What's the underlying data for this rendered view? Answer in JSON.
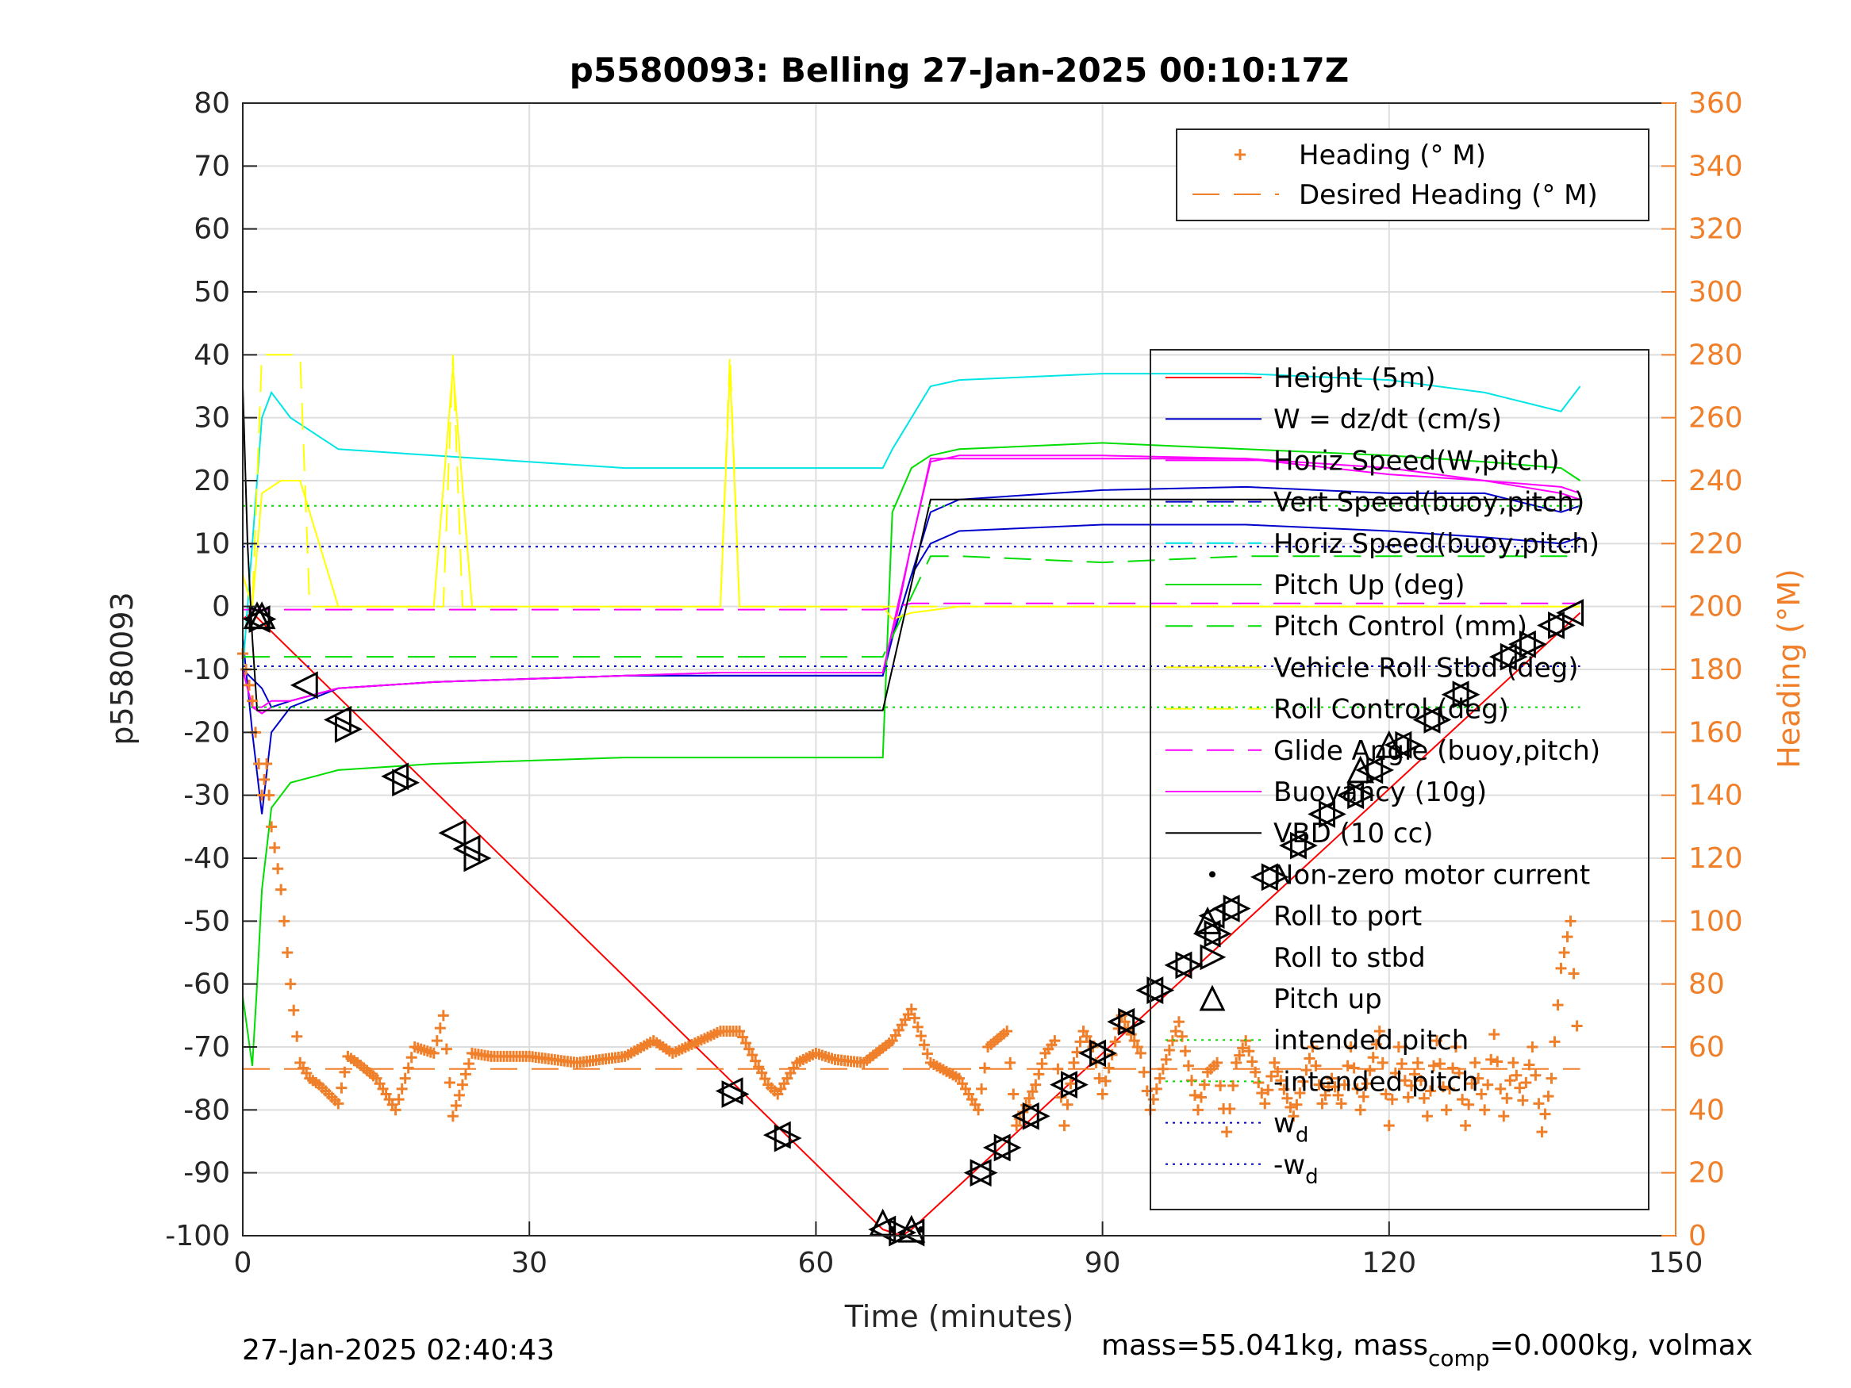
{
  "chart_data": {
    "type": "line",
    "title": "p5580093: Belling 27-Jan-2025 00:10:17Z",
    "xlabel": "Time (minutes)",
    "ylabel": "p5580093",
    "ylabel_right": "Heading (°M)",
    "xlim": [
      0,
      150
    ],
    "ylim": [
      -100,
      80
    ],
    "ylim_right": [
      0,
      360
    ],
    "xticks": [
      "0",
      "30",
      "60",
      "90",
      "120",
      "150"
    ],
    "yticks": [
      "80",
      "70",
      "60",
      "50",
      "40",
      "30",
      "20",
      "10",
      "0",
      "-10",
      "-20",
      "-30",
      "-40",
      "-50",
      "-60",
      "-70",
      "-80",
      "-90",
      "-100"
    ],
    "yticks_right": [
      "360",
      "340",
      "320",
      "300",
      "280",
      "260",
      "240",
      "220",
      "200",
      "180",
      "160",
      "140",
      "120",
      "100",
      "80",
      "60",
      "40",
      "20",
      "0"
    ],
    "grid": true,
    "footer_left": "27-Jan-2025 02:40:43",
    "footer_right_a": "mass=55.041kg, mass",
    "footer_right_sub": "comp",
    "footer_right_b": "=0.000kg, volmax",
    "legend_right": {
      "placement": "top-right",
      "entries": [
        "Heading (° M)",
        "Desired Heading (° M)"
      ]
    },
    "legend_main": {
      "placement": "right",
      "entries": [
        "Height (5m)",
        "W = dz/dt (cm/s)",
        "Horiz Speed(W,pitch)",
        "Vert Speed(buoy,pitch)",
        "Horiz Speed(buoy,pitch)",
        "Pitch Up (deg)",
        "Pitch Control (mm)",
        "Vehicle Roll Stbd (deg)",
        "Roll Control (deg)",
        "Glide Angle (buoy,pitch)",
        "Buoyancy (10g)",
        "VBD (10 cc)",
        "Non-zero motor current",
        "Roll to port",
        "Roll to stbd",
        "Pitch up",
        "intended pitch",
        "-intended pitch",
        "w",
        "-w"
      ],
      "sub_wd": "d"
    },
    "colors": {
      "height": "#ff0000",
      "w": "#0000cc",
      "horiz_w": "#ff00ff",
      "vert_buoy": "#0000cc",
      "horiz_buoy": "#00e5e5",
      "pitch": "#00dd00",
      "pitch_ctrl": "#00dd00",
      "roll": "#ffff00",
      "roll_ctrl": "#ffff00",
      "glide": "#ff00ff",
      "buoyancy": "#ff00ff",
      "vbd": "#000000",
      "heading": "#f07f2a",
      "intended": "#00dd00",
      "wd": "#0000cc"
    },
    "series": [
      {
        "name": "Height (5m)",
        "axis": "left",
        "x": [
          0,
          1,
          67,
          69,
          70,
          140
        ],
        "y": [
          -2,
          -1,
          -99,
          -100,
          -99,
          -1
        ]
      },
      {
        "name": "W = dz/dt (cm/s)",
        "axis": "left",
        "x": [
          0,
          1,
          2,
          3,
          5,
          10,
          20,
          30,
          40,
          50,
          60,
          67,
          68,
          70,
          72,
          75,
          90,
          105,
          120,
          130,
          138,
          140
        ],
        "y": [
          -5,
          -20,
          -33,
          -20,
          -16,
          -13,
          -12,
          -11.5,
          -11,
          -11,
          -11,
          -11,
          -5,
          5,
          10,
          12,
          13,
          13,
          12,
          11,
          10,
          11
        ]
      },
      {
        "name": "Horiz Speed(W,pitch)",
        "axis": "left",
        "x": [
          0,
          1,
          2,
          3,
          5,
          10,
          20,
          30,
          40,
          50,
          60,
          67,
          68,
          70,
          72,
          75,
          90,
          105,
          120,
          130,
          138,
          140
        ],
        "y": [
          -10,
          -16,
          -17,
          -16,
          -15,
          -13,
          -12,
          -11.5,
          -11,
          -10.5,
          -10.5,
          -10.5,
          -5,
          10,
          23,
          24,
          24,
          23.5,
          22,
          20,
          18,
          17
        ]
      },
      {
        "name": "Vert Speed(buoy,pitch)",
        "axis": "left",
        "x": [
          0,
          2,
          3,
          5,
          10,
          20,
          30,
          40,
          50,
          60,
          67,
          68,
          70,
          72,
          75,
          90,
          105,
          120,
          130,
          138,
          140
        ],
        "y": [
          -10,
          -13,
          -16,
          -15,
          -13,
          -12,
          -11.5,
          -11,
          -11,
          -11,
          -11,
          -5,
          5,
          15,
          17,
          18.5,
          19,
          18,
          18,
          15,
          16
        ]
      },
      {
        "name": "Horiz Speed(buoy,pitch)",
        "axis": "left",
        "x": [
          0,
          2,
          3,
          5,
          10,
          20,
          30,
          40,
          50,
          60,
          67,
          68,
          70,
          72,
          75,
          90,
          105,
          120,
          130,
          138,
          140
        ],
        "y": [
          -10,
          30,
          34,
          30,
          25,
          24,
          23,
          22,
          22,
          22,
          22,
          25,
          30,
          35,
          36,
          37,
          37,
          36,
          34,
          31,
          35
        ]
      },
      {
        "name": "Pitch Up (deg)",
        "axis": "left",
        "x": [
          0,
          1,
          1.5,
          2,
          3,
          5,
          10,
          20,
          30,
          40,
          50,
          60,
          67,
          68,
          70,
          72,
          75,
          90,
          105,
          120,
          130,
          138,
          140
        ],
        "y": [
          -62,
          -73,
          -60,
          -45,
          -32,
          -28,
          -26,
          -25,
          -24.5,
          -24,
          -24,
          -24,
          -24,
          15,
          22,
          24,
          25,
          26,
          25,
          24,
          23,
          22,
          20
        ]
      },
      {
        "name": "Pitch Control (mm)",
        "axis": "left",
        "dash": true,
        "x": [
          0,
          1,
          10,
          20,
          30,
          40,
          50,
          60,
          67,
          72,
          75,
          90,
          105,
          120,
          130,
          140
        ],
        "y": [
          -8,
          -8,
          -8,
          -8,
          -8,
          -8,
          -8,
          -8,
          -8,
          8,
          8,
          7,
          8,
          8,
          8,
          8
        ]
      },
      {
        "name": "Vehicle Roll Stbd (deg)",
        "axis": "left",
        "x": [
          0,
          1,
          2,
          4,
          6,
          10,
          20,
          22,
          24,
          30,
          40,
          50,
          51,
          52,
          60,
          67,
          68,
          70,
          75,
          80,
          90,
          100,
          110,
          120,
          130,
          140
        ],
        "y": [
          5,
          0,
          18,
          20,
          20,
          0,
          0,
          38,
          0,
          0,
          0,
          0,
          38,
          0,
          0,
          0,
          -2,
          -1,
          0,
          0,
          0,
          0,
          0,
          0,
          0,
          0
        ]
      },
      {
        "name": "Roll Control (deg)",
        "axis": "left",
        "dash": true,
        "x": [
          0,
          1,
          2,
          6,
          7,
          21,
          22,
          23,
          50,
          51,
          52,
          67,
          140
        ],
        "y": [
          5,
          0,
          40,
          40,
          0,
          0,
          40,
          0,
          0,
          40,
          0,
          0,
          0
        ]
      },
      {
        "name": "Glide Angle (buoy,pitch)",
        "axis": "left",
        "dash": true,
        "x": [
          0,
          67,
          70,
          140
        ],
        "y": [
          -0.5,
          -0.5,
          0.5,
          0.5
        ]
      },
      {
        "name": "Buoyancy (10g)",
        "axis": "left",
        "x": [
          0,
          1,
          2,
          3,
          5,
          10,
          20,
          30,
          40,
          50,
          60,
          67,
          72,
          75,
          90,
          105,
          120,
          130,
          138,
          140
        ],
        "y": [
          -10,
          -16,
          -16,
          -15,
          -15,
          -13,
          -12,
          -11.5,
          -11,
          -10.5,
          -10.5,
          -10.5,
          23.5,
          23.5,
          23.5,
          23.5,
          21,
          20,
          19,
          18
        ]
      },
      {
        "name": "VBD (10 cc)",
        "axis": "left",
        "x": [
          0,
          0.5,
          1,
          1.5,
          67,
          72,
          140
        ],
        "y": [
          35,
          10,
          -5,
          -16.5,
          -16.5,
          17,
          17
        ]
      },
      {
        "name": "intended pitch",
        "axis": "left",
        "dot": true,
        "x": [
          0,
          140
        ],
        "y": [
          16,
          16
        ]
      },
      {
        "name": "-intended pitch",
        "axis": "left",
        "dot": true,
        "x": [
          0,
          140
        ],
        "y": [
          -16,
          -16
        ]
      },
      {
        "name": "w",
        "axis": "left",
        "dot": true,
        "x": [
          0,
          140
        ],
        "y": [
          9.5,
          9.5
        ]
      },
      {
        "name": "-w",
        "axis": "left",
        "dot": true,
        "x": [
          0,
          140
        ],
        "y": [
          -9.5,
          -9.5
        ]
      },
      {
        "name": "Desired Heading (° M)",
        "axis": "right",
        "dash": true,
        "x": [
          0,
          140
        ],
        "y": [
          53,
          53
        ]
      },
      {
        "name": "Heading (° M)",
        "axis": "right",
        "marker": "+",
        "x": [
          0,
          1,
          2,
          2.5,
          3,
          4,
          5,
          6,
          7,
          8,
          10,
          11,
          12,
          14,
          16,
          18,
          20,
          21,
          22,
          24,
          26,
          30,
          35,
          40,
          43,
          45,
          50,
          52,
          55,
          56,
          58,
          60,
          62,
          65,
          68,
          70,
          72,
          75,
          77,
          78,
          80,
          81,
          83,
          84,
          85,
          86,
          87,
          88,
          89,
          90,
          92,
          94,
          95,
          96,
          98,
          100,
          101,
          102,
          103,
          104,
          105,
          107,
          108,
          110,
          112,
          113,
          114,
          115,
          116,
          117,
          119,
          120,
          121,
          122,
          123,
          124,
          125,
          126,
          127,
          128,
          129,
          130,
          131,
          132,
          133,
          134,
          135,
          136,
          137,
          138,
          139,
          140
        ],
        "y": [
          185,
          170,
          140,
          150,
          130,
          110,
          80,
          55,
          50,
          48,
          42,
          57,
          55,
          50,
          40,
          60,
          58,
          70,
          38,
          58,
          57,
          57,
          55,
          57,
          62,
          58,
          65,
          65,
          48,
          45,
          55,
          58,
          56,
          55,
          62,
          72,
          55,
          50,
          40,
          60,
          65,
          35,
          48,
          58,
          62,
          35,
          55,
          65,
          60,
          45,
          70,
          58,
          40,
          50,
          68,
          40,
          52,
          55,
          33,
          55,
          62,
          42,
          55,
          38,
          60,
          42,
          50,
          42,
          60,
          40,
          65,
          35,
          60,
          44,
          55,
          38,
          62,
          40,
          60,
          35,
          55,
          40,
          64,
          38,
          55,
          43,
          60,
          33,
          50,
          85,
          100,
          50
        ]
      }
    ],
    "events": {
      "roll_to_port": [
        [
          1.5,
          -2
        ],
        [
          6.5,
          -12.5
        ],
        [
          10,
          -18
        ],
        [
          16,
          -27
        ],
        [
          22,
          -36
        ],
        [
          23.5,
          -38.5
        ],
        [
          51,
          -77
        ],
        [
          56,
          -84
        ],
        [
          67,
          -99
        ],
        [
          70,
          -99.5
        ],
        [
          77,
          -90
        ],
        [
          79,
          -86
        ],
        [
          82,
          -81
        ],
        [
          86,
          -76
        ],
        [
          89,
          -71
        ],
        [
          92,
          -66
        ],
        [
          95,
          -61
        ],
        [
          98,
          -57
        ],
        [
          101,
          -52
        ],
        [
          103,
          -48
        ],
        [
          107,
          -43
        ],
        [
          110,
          -38
        ],
        [
          113,
          -33
        ],
        [
          116,
          -30
        ],
        [
          118,
          -26
        ],
        [
          121,
          -22
        ],
        [
          124,
          -18
        ],
        [
          127,
          -14
        ],
        [
          132,
          -8
        ],
        [
          134,
          -6
        ],
        [
          137,
          -3
        ],
        [
          139,
          -1
        ]
      ],
      "roll_to_stbd": [
        [
          2,
          -2
        ],
        [
          11,
          -19.5
        ],
        [
          17,
          -28
        ],
        [
          24.5,
          -40
        ],
        [
          51.5,
          -77.5
        ],
        [
          57,
          -84.5
        ],
        [
          69,
          -99.5
        ],
        [
          77.5,
          -90
        ],
        [
          80,
          -86
        ],
        [
          83,
          -81
        ],
        [
          87,
          -76
        ],
        [
          90,
          -71
        ],
        [
          93,
          -66
        ],
        [
          96,
          -61
        ],
        [
          99,
          -57
        ],
        [
          102,
          -52
        ],
        [
          104,
          -48
        ],
        [
          108,
          -43
        ],
        [
          111,
          -38
        ],
        [
          114,
          -33
        ],
        [
          117,
          -30
        ],
        [
          119,
          -26
        ],
        [
          122,
          -22
        ],
        [
          125,
          -18
        ],
        [
          128,
          -14
        ],
        [
          133,
          -8
        ],
        [
          135,
          -6
        ],
        [
          138,
          -3
        ]
      ],
      "pitch_up": [
        [
          1.5,
          -1.5
        ],
        [
          2,
          -1.5
        ],
        [
          67,
          -98
        ],
        [
          70,
          -99
        ],
        [
          101,
          -50
        ],
        [
          117,
          -26
        ],
        [
          120,
          -22
        ]
      ],
      "motor_current": [
        [
          68,
          -99
        ],
        [
          69,
          -100
        ],
        [
          71,
          -99
        ]
      ]
    }
  }
}
